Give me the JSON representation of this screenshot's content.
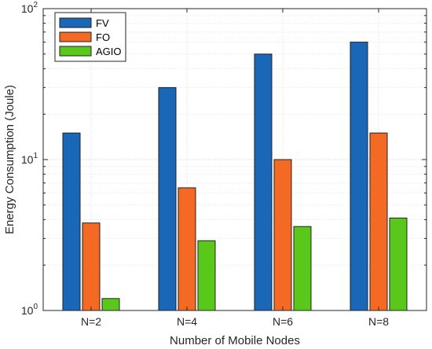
{
  "chart_data": {
    "type": "bar",
    "title": "",
    "xlabel": "Number of Mobile Nodes",
    "ylabel": "Energy Consumption (Joule)",
    "yscale": "log",
    "ylim": [
      1,
      100
    ],
    "yticks": [
      {
        "value": 1,
        "base": "10",
        "exp": "0"
      },
      {
        "value": 10,
        "base": "10",
        "exp": "1"
      },
      {
        "value": 100,
        "base": "10",
        "exp": "2"
      }
    ],
    "grid": true,
    "legend_position": "top-left",
    "categories": [
      "N=2",
      "N=4",
      "N=6",
      "N=8"
    ],
    "series": [
      {
        "name": "FV",
        "color": "#1a67b8",
        "values": [
          15,
          30,
          50,
          60
        ]
      },
      {
        "name": "FO",
        "color": "#f46a25",
        "values": [
          3.8,
          6.5,
          10,
          15
        ]
      },
      {
        "name": "AGIO",
        "color": "#5ac81a",
        "values": [
          1.2,
          2.9,
          3.6,
          4.1
        ]
      }
    ]
  }
}
